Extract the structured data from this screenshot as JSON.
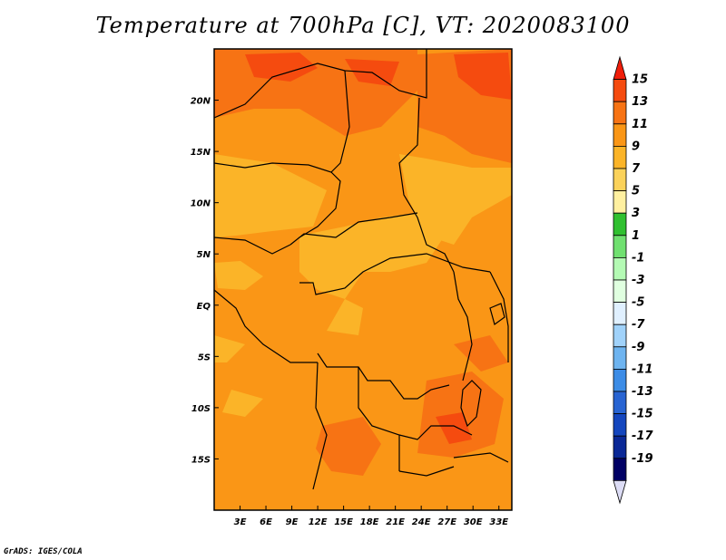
{
  "chart_data": {
    "type": "heatmap",
    "title": "Temperature at 700hPa [C], VT: 2020083100",
    "credit": "GrADS: IGES/COLA",
    "x_ticks": [
      "3E",
      "6E",
      "9E",
      "12E",
      "15E",
      "18E",
      "21E",
      "24E",
      "27E",
      "30E",
      "33E"
    ],
    "x_values": [
      3,
      6,
      9,
      12,
      15,
      18,
      21,
      24,
      27,
      30,
      33
    ],
    "y_ticks": [
      "20N",
      "15N",
      "10N",
      "5N",
      "EQ",
      "5S",
      "10S",
      "15S"
    ],
    "y_values": [
      20,
      15,
      10,
      5,
      0,
      -5,
      -10,
      -15
    ],
    "xlim": [
      0,
      34.5
    ],
    "ylim": [
      -20,
      25
    ],
    "colorbar": {
      "labels": [
        "15",
        "13",
        "11",
        "9",
        "7",
        "5",
        "3",
        "1",
        "-1",
        "-3",
        "-5",
        "-7",
        "-9",
        "-11",
        "-13",
        "-15",
        "-17",
        "-19"
      ],
      "colors": [
        "#f01e0a",
        "#f54b0f",
        "#f77314",
        "#fa9616",
        "#fbb428",
        "#fbd25a",
        "#fff0a0",
        "#30c030",
        "#70e070",
        "#b4fab4",
        "#e0ffe0",
        "#e0f0ff",
        "#a0d2fa",
        "#6eb4f0",
        "#3c8ce6",
        "#2864d2",
        "#1446be",
        "#0a2896",
        "#000064",
        "#dcdcf5"
      ]
    },
    "regions": [
      {
        "level": 11,
        "color": "#fa9616"
      },
      {
        "level": 9,
        "color": "#fbb428"
      },
      {
        "level": 13,
        "color": "#f77314"
      },
      {
        "level": 15,
        "color": "#f54b0f"
      }
    ]
  }
}
